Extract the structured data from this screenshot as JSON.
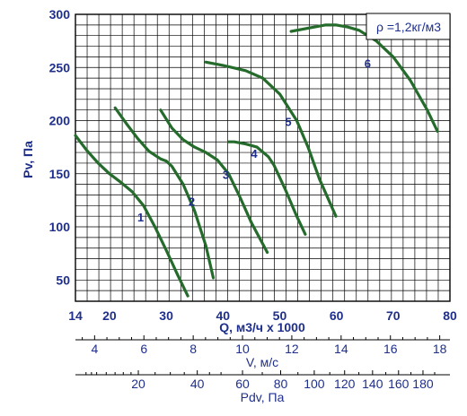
{
  "chart_data": {
    "type": "line",
    "title": "",
    "annotation": "ρ =1,2кг/м3",
    "ylabel": "Pv, Па",
    "xlabel": "Q, м3/ч x 1000",
    "secondary_axes": [
      {
        "label": "V, м/с",
        "ticks": [
          "4",
          "6",
          "8",
          "10",
          "12",
          "14",
          "16",
          "18"
        ]
      },
      {
        "label": "Pdv, Па",
        "ticks": [
          "20",
          "40",
          "60",
          "80",
          "100",
          "120",
          "140",
          "160",
          "180"
        ]
      }
    ],
    "xlim": [
      14,
      80
    ],
    "ylim": [
      30,
      300
    ],
    "y_ticks": [
      50,
      100,
      150,
      200,
      250,
      300
    ],
    "x_ticks": [
      14,
      20,
      30,
      40,
      50,
      60,
      70,
      80
    ],
    "grid": true,
    "colors": {
      "curve": "#256b2c",
      "text": "#1f2f8c",
      "grid": "#000000"
    },
    "series": [
      {
        "name": "1",
        "x": [
          14,
          16,
          18,
          20,
          22,
          24,
          26,
          28,
          30,
          32,
          33.8
        ],
        "y": [
          186,
          172,
          160,
          150,
          142,
          133,
          120,
          100,
          78,
          55,
          35
        ]
      },
      {
        "name": "2",
        "x": [
          21,
          23,
          25,
          27,
          29,
          30,
          31,
          33,
          35,
          37,
          38.3
        ],
        "y": [
          212,
          197,
          183,
          171,
          164,
          162,
          157,
          140,
          115,
          82,
          52
        ]
      },
      {
        "name": "3",
        "x": [
          29,
          31,
          33,
          35,
          37,
          39,
          41,
          43,
          45,
          47.8
        ],
        "y": [
          210,
          193,
          182,
          175,
          170,
          163,
          150,
          128,
          104,
          76
        ]
      },
      {
        "name": "4",
        "x": [
          41,
          42,
          44,
          46,
          48,
          49,
          51,
          53,
          54.5
        ],
        "y": [
          180,
          180,
          178,
          175,
          166,
          158,
          135,
          110,
          93
        ]
      },
      {
        "name": "5",
        "x": [
          37,
          40,
          44,
          47,
          50,
          53,
          55,
          57,
          59.9
        ],
        "y": [
          255,
          252,
          247,
          240,
          225,
          200,
          175,
          145,
          110
        ]
      },
      {
        "name": "6",
        "x": [
          52,
          55,
          58,
          60,
          62,
          64,
          67,
          70,
          73,
          76,
          77.8
        ],
        "y": [
          284,
          287,
          290,
          290,
          288,
          285,
          275,
          260,
          238,
          210,
          190
        ]
      }
    ],
    "curve_labels": [
      {
        "text": "1",
        "x": 25.5,
        "y": 105
      },
      {
        "text": "2",
        "x": 34.5,
        "y": 120
      },
      {
        "text": "3",
        "x": 40.5,
        "y": 145
      },
      {
        "text": "4",
        "x": 45.5,
        "y": 165
      },
      {
        "text": "5",
        "x": 51.5,
        "y": 195
      },
      {
        "text": "6",
        "x": 65.5,
        "y": 250
      }
    ]
  }
}
